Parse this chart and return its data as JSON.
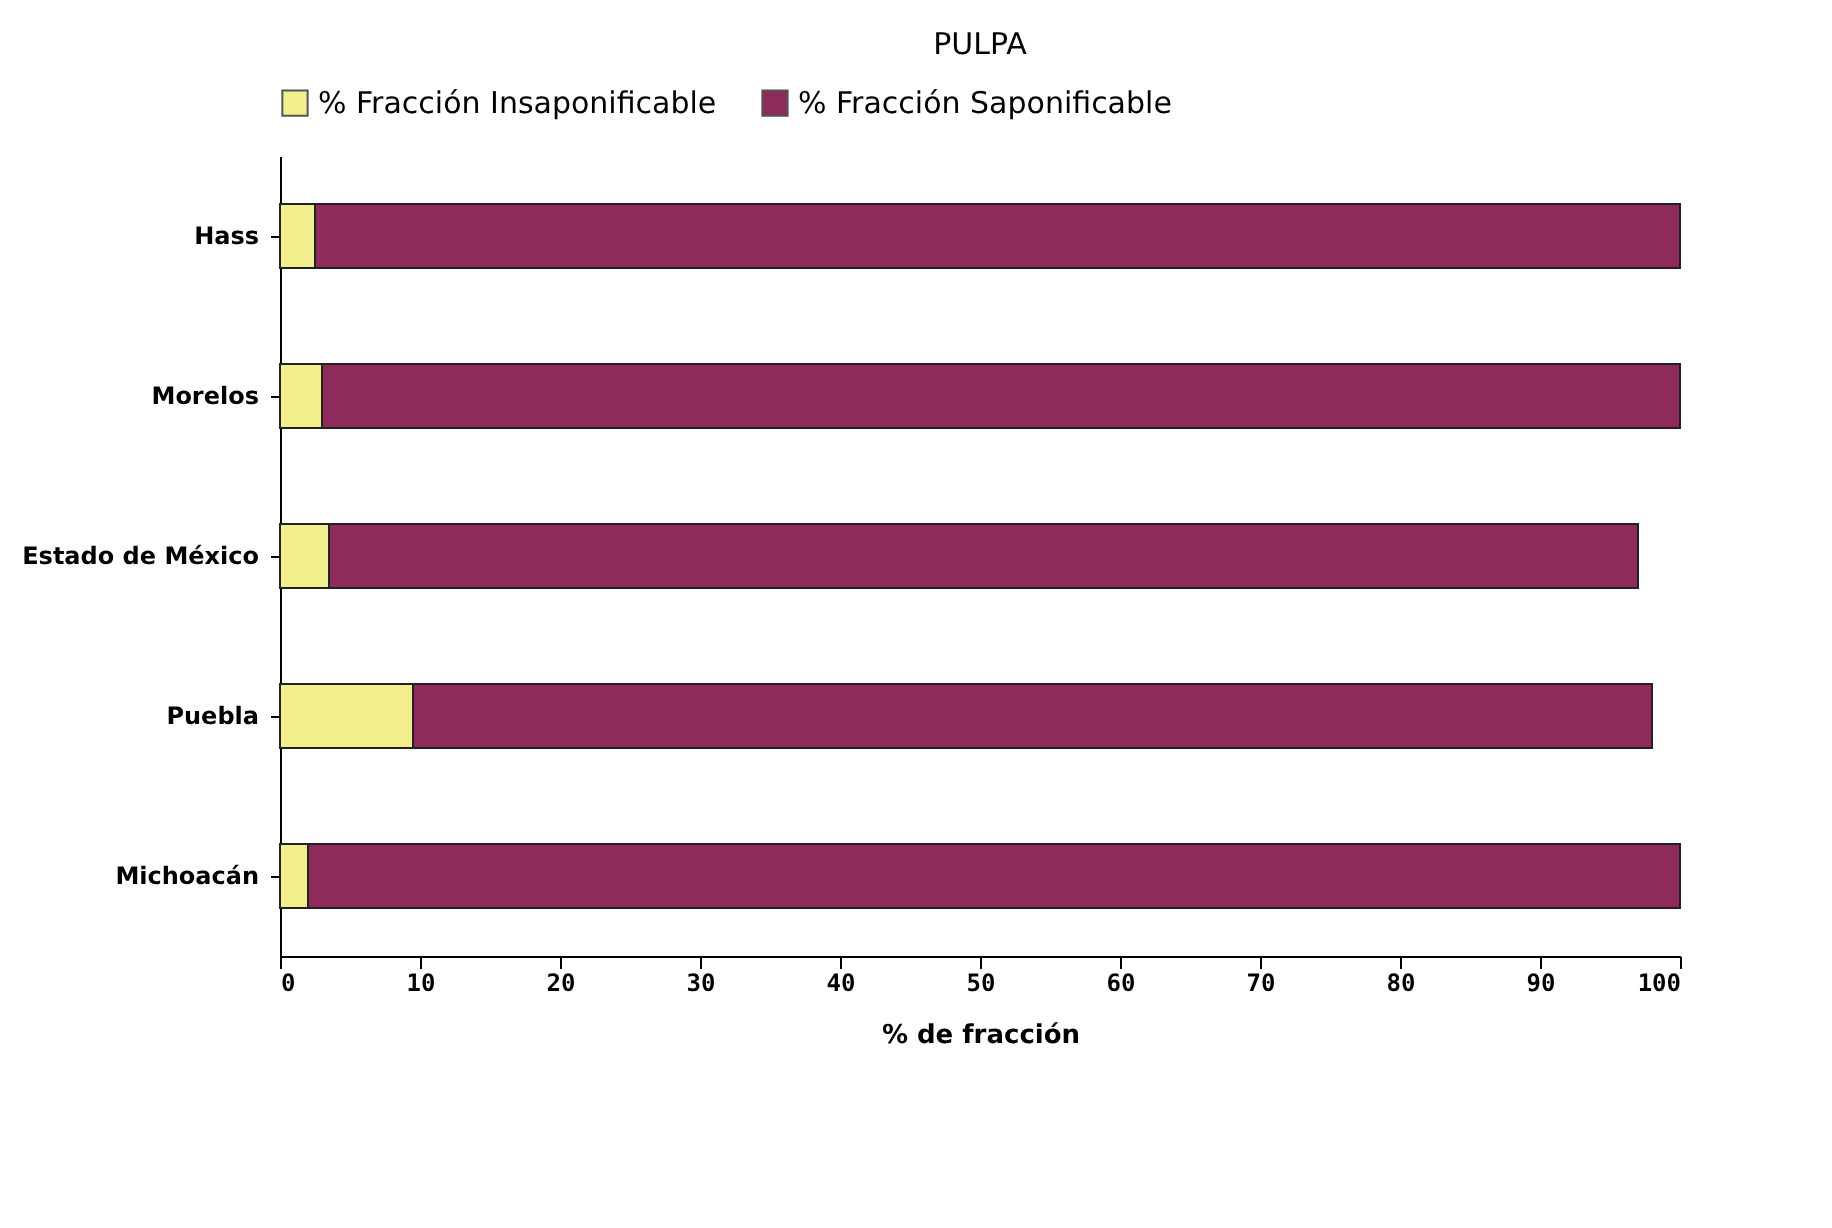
{
  "chart_data": {
    "type": "bar",
    "title": "PULPA",
    "xlabel": "% de fracción",
    "orientation": "horizontal",
    "stacked": true,
    "categories": [
      "Hass",
      "Morelos",
      "Estado de México",
      "Puebla",
      "Michoacán"
    ],
    "series": [
      {
        "name": "% Fracción Insaponificable",
        "color": "#f2ee8c",
        "values": [
          2.5,
          3,
          3.5,
          9.5,
          2
        ]
      },
      {
        "name": "% Fracción Saponificable",
        "color": "#8e2a5c",
        "values": [
          97.5,
          97,
          93.5,
          88.5,
          98
        ]
      }
    ],
    "xlim": [
      0,
      100
    ],
    "xticks": [
      0,
      10,
      20,
      30,
      40,
      50,
      60,
      70,
      80,
      90,
      100
    ],
    "grid": false,
    "legend": "top"
  }
}
